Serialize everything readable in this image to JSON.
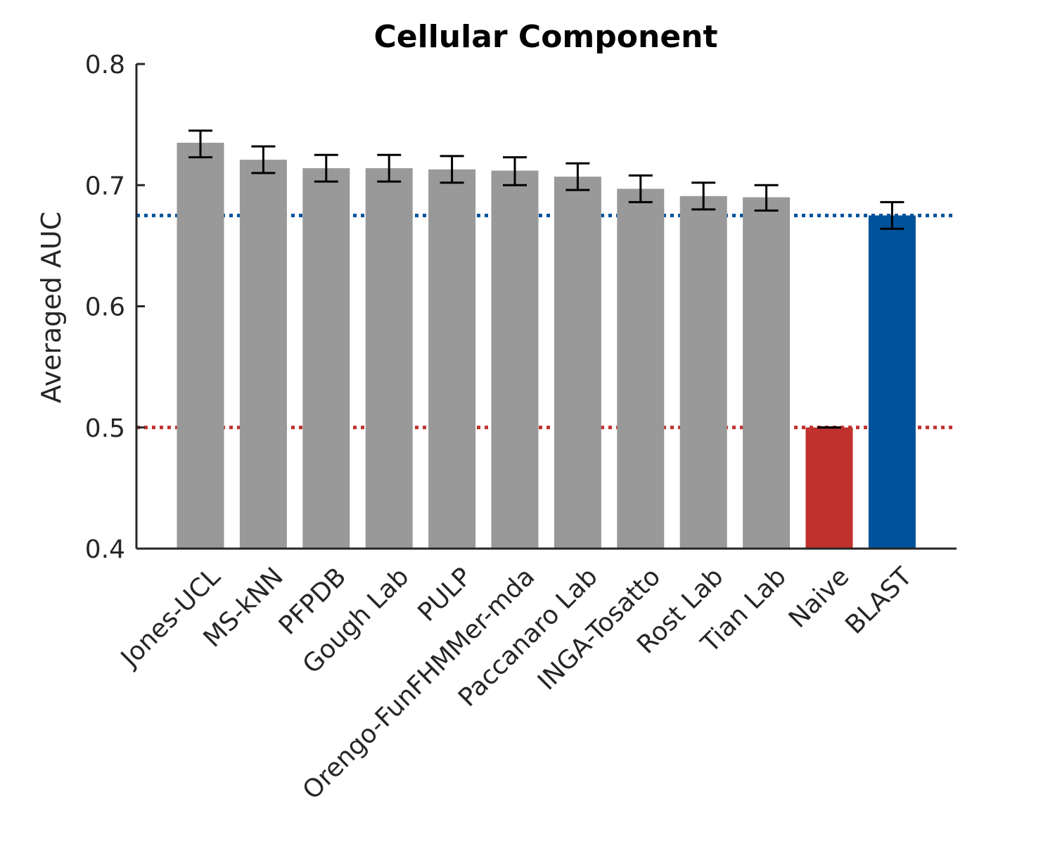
{
  "chart_data": {
    "type": "bar",
    "title": "Cellular Component",
    "xlabel": "",
    "ylabel": "Averaged AUC",
    "ylim": [
      0.4,
      0.8
    ],
    "yticks": [
      "0.4",
      "0.5",
      "0.6",
      "0.7",
      "0.8"
    ],
    "categories": [
      "Jones-UCL",
      "MS-kNN",
      "PFPDB",
      "Gough Lab",
      "PULP",
      "Orengo-FunFHMMer-mda",
      "Paccanaro Lab",
      "INGA-Tosatto",
      "Rost Lab",
      "Tian Lab",
      "Naive",
      "BLAST"
    ],
    "values": [
      0.735,
      0.721,
      0.714,
      0.714,
      0.713,
      0.712,
      0.707,
      0.697,
      0.691,
      0.69,
      0.5,
      0.675
    ],
    "error_low": [
      0.723,
      0.71,
      0.703,
      0.703,
      0.702,
      0.7,
      0.696,
      0.686,
      0.68,
      0.679,
      0.5,
      0.664
    ],
    "error_high": [
      0.745,
      0.732,
      0.725,
      0.725,
      0.724,
      0.723,
      0.718,
      0.708,
      0.702,
      0.7,
      0.5,
      0.686
    ],
    "bar_colors": [
      "#999999",
      "#999999",
      "#999999",
      "#999999",
      "#999999",
      "#999999",
      "#999999",
      "#999999",
      "#999999",
      "#999999",
      "#c0302d",
      "#00529b"
    ],
    "reference_lines": [
      {
        "y": 0.675,
        "color": "#00529b",
        "style": "dotted"
      },
      {
        "y": 0.5,
        "color": "#c0302d",
        "style": "dotted"
      }
    ],
    "grid": false,
    "legend": "none"
  }
}
